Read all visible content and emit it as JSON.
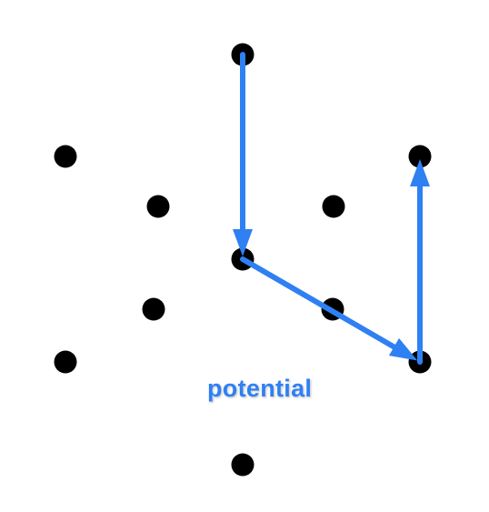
{
  "diagram": {
    "label": "potential",
    "colors": {
      "dot": "#000000",
      "arrow": "#2f80f2",
      "background": "#ffffff"
    },
    "dots": [
      {
        "name": "dot-top"
      },
      {
        "name": "dot-upper-left"
      },
      {
        "name": "dot-upper-right"
      },
      {
        "name": "dot-inner-upper-left"
      },
      {
        "name": "dot-inner-upper-right"
      },
      {
        "name": "dot-center"
      },
      {
        "name": "dot-inner-lower-left"
      },
      {
        "name": "dot-inner-lower-right"
      },
      {
        "name": "dot-lower-left"
      },
      {
        "name": "dot-lower-right"
      },
      {
        "name": "dot-bottom"
      }
    ],
    "arrows": [
      {
        "name": "arrow-top-to-center",
        "from": "dot-top",
        "to": "dot-center"
      },
      {
        "name": "arrow-center-to-lower-right",
        "from": "dot-center",
        "to": "dot-lower-right"
      },
      {
        "name": "arrow-lower-right-to-upper-right",
        "from": "dot-lower-right",
        "to": "dot-upper-right"
      }
    ]
  }
}
